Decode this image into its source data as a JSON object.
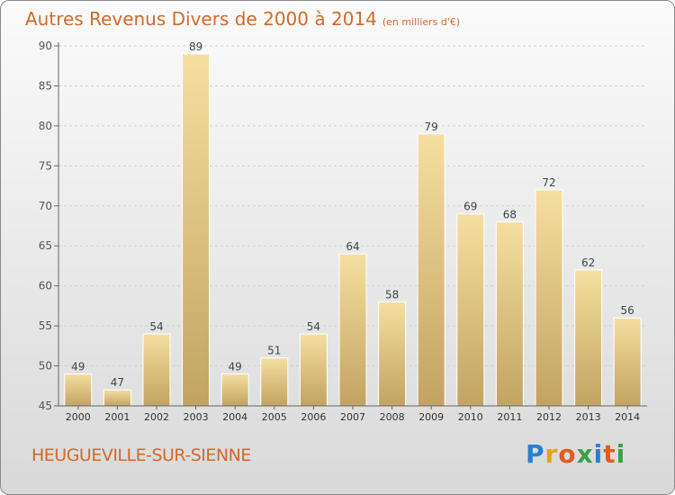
{
  "title": "Autres Revenus Divers de 2000 à 2014",
  "unit": "(en milliers d'€)",
  "location": "HEUGUEVILLE-SUR-SIENNE",
  "brand": {
    "letters": [
      "P",
      "r",
      "o",
      "x",
      "i",
      "t",
      "i"
    ],
    "colors": [
      "#2a7fd0",
      "#e7a21b",
      "#e25b1f",
      "#3aa04c",
      "#2a7fd0",
      "#e25b1f",
      "#3aa04c"
    ]
  },
  "colors": {
    "bar_light": "#f5dfa0",
    "bar_dark": "#c2a362",
    "accent": "#d2692a"
  },
  "chart_data": {
    "type": "bar",
    "categories": [
      "2000",
      "2001",
      "2002",
      "2003",
      "2004",
      "2005",
      "2006",
      "2007",
      "2008",
      "2009",
      "2010",
      "2011",
      "2012",
      "2013",
      "2014"
    ],
    "values": [
      49,
      47,
      54,
      89,
      49,
      51,
      54,
      64,
      58,
      79,
      69,
      68,
      72,
      62,
      56
    ],
    "ylim": [
      45,
      90
    ],
    "yticks": [
      45,
      50,
      55,
      60,
      65,
      70,
      75,
      80,
      85,
      90
    ],
    "grid": true
  }
}
